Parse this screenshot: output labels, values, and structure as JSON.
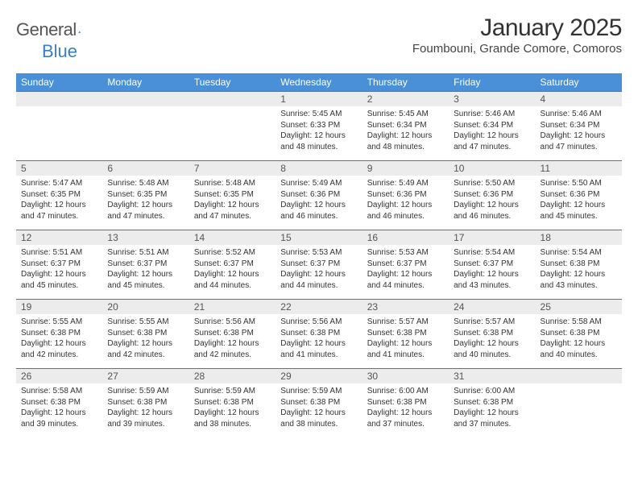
{
  "logo": {
    "word1": "General",
    "word2": "Blue"
  },
  "title": "January 2025",
  "location": "Foumbouni, Grande Comore, Comoros",
  "colors": {
    "header_bg": "#4a90d9",
    "header_text": "#ffffff",
    "rule": "#4a78a8",
    "daynum_bg": "#ececec",
    "daynum_text": "#555555",
    "body_text": "#333333",
    "logo_gray": "#555555",
    "logo_blue": "#3a7fc4",
    "page_bg": "#ffffff"
  },
  "weekdays": [
    "Sunday",
    "Monday",
    "Tuesday",
    "Wednesday",
    "Thursday",
    "Friday",
    "Saturday"
  ],
  "weeks": [
    [
      {
        "n": "",
        "sr": "",
        "ss": "",
        "dl": ""
      },
      {
        "n": "",
        "sr": "",
        "ss": "",
        "dl": ""
      },
      {
        "n": "",
        "sr": "",
        "ss": "",
        "dl": ""
      },
      {
        "n": "1",
        "sr": "5:45 AM",
        "ss": "6:33 PM",
        "dl": "12 hours and 48 minutes."
      },
      {
        "n": "2",
        "sr": "5:45 AM",
        "ss": "6:34 PM",
        "dl": "12 hours and 48 minutes."
      },
      {
        "n": "3",
        "sr": "5:46 AM",
        "ss": "6:34 PM",
        "dl": "12 hours and 47 minutes."
      },
      {
        "n": "4",
        "sr": "5:46 AM",
        "ss": "6:34 PM",
        "dl": "12 hours and 47 minutes."
      }
    ],
    [
      {
        "n": "5",
        "sr": "5:47 AM",
        "ss": "6:35 PM",
        "dl": "12 hours and 47 minutes."
      },
      {
        "n": "6",
        "sr": "5:48 AM",
        "ss": "6:35 PM",
        "dl": "12 hours and 47 minutes."
      },
      {
        "n": "7",
        "sr": "5:48 AM",
        "ss": "6:35 PM",
        "dl": "12 hours and 47 minutes."
      },
      {
        "n": "8",
        "sr": "5:49 AM",
        "ss": "6:36 PM",
        "dl": "12 hours and 46 minutes."
      },
      {
        "n": "9",
        "sr": "5:49 AM",
        "ss": "6:36 PM",
        "dl": "12 hours and 46 minutes."
      },
      {
        "n": "10",
        "sr": "5:50 AM",
        "ss": "6:36 PM",
        "dl": "12 hours and 46 minutes."
      },
      {
        "n": "11",
        "sr": "5:50 AM",
        "ss": "6:36 PM",
        "dl": "12 hours and 45 minutes."
      }
    ],
    [
      {
        "n": "12",
        "sr": "5:51 AM",
        "ss": "6:37 PM",
        "dl": "12 hours and 45 minutes."
      },
      {
        "n": "13",
        "sr": "5:51 AM",
        "ss": "6:37 PM",
        "dl": "12 hours and 45 minutes."
      },
      {
        "n": "14",
        "sr": "5:52 AM",
        "ss": "6:37 PM",
        "dl": "12 hours and 44 minutes."
      },
      {
        "n": "15",
        "sr": "5:53 AM",
        "ss": "6:37 PM",
        "dl": "12 hours and 44 minutes."
      },
      {
        "n": "16",
        "sr": "5:53 AM",
        "ss": "6:37 PM",
        "dl": "12 hours and 44 minutes."
      },
      {
        "n": "17",
        "sr": "5:54 AM",
        "ss": "6:37 PM",
        "dl": "12 hours and 43 minutes."
      },
      {
        "n": "18",
        "sr": "5:54 AM",
        "ss": "6:38 PM",
        "dl": "12 hours and 43 minutes."
      }
    ],
    [
      {
        "n": "19",
        "sr": "5:55 AM",
        "ss": "6:38 PM",
        "dl": "12 hours and 42 minutes."
      },
      {
        "n": "20",
        "sr": "5:55 AM",
        "ss": "6:38 PM",
        "dl": "12 hours and 42 minutes."
      },
      {
        "n": "21",
        "sr": "5:56 AM",
        "ss": "6:38 PM",
        "dl": "12 hours and 42 minutes."
      },
      {
        "n": "22",
        "sr": "5:56 AM",
        "ss": "6:38 PM",
        "dl": "12 hours and 41 minutes."
      },
      {
        "n": "23",
        "sr": "5:57 AM",
        "ss": "6:38 PM",
        "dl": "12 hours and 41 minutes."
      },
      {
        "n": "24",
        "sr": "5:57 AM",
        "ss": "6:38 PM",
        "dl": "12 hours and 40 minutes."
      },
      {
        "n": "25",
        "sr": "5:58 AM",
        "ss": "6:38 PM",
        "dl": "12 hours and 40 minutes."
      }
    ],
    [
      {
        "n": "26",
        "sr": "5:58 AM",
        "ss": "6:38 PM",
        "dl": "12 hours and 39 minutes."
      },
      {
        "n": "27",
        "sr": "5:59 AM",
        "ss": "6:38 PM",
        "dl": "12 hours and 39 minutes."
      },
      {
        "n": "28",
        "sr": "5:59 AM",
        "ss": "6:38 PM",
        "dl": "12 hours and 38 minutes."
      },
      {
        "n": "29",
        "sr": "5:59 AM",
        "ss": "6:38 PM",
        "dl": "12 hours and 38 minutes."
      },
      {
        "n": "30",
        "sr": "6:00 AM",
        "ss": "6:38 PM",
        "dl": "12 hours and 37 minutes."
      },
      {
        "n": "31",
        "sr": "6:00 AM",
        "ss": "6:38 PM",
        "dl": "12 hours and 37 minutes."
      },
      {
        "n": "",
        "sr": "",
        "ss": "",
        "dl": ""
      }
    ]
  ],
  "labels": {
    "sunrise": "Sunrise:",
    "sunset": "Sunset:",
    "daylight": "Daylight:"
  }
}
